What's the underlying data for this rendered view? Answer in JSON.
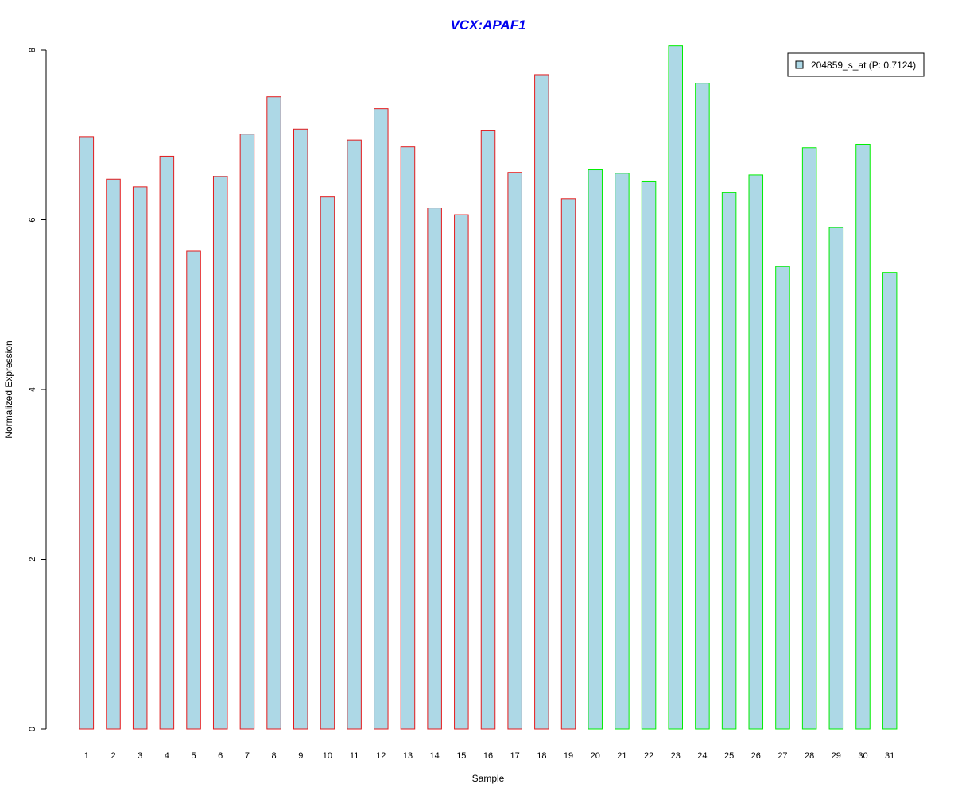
{
  "chart_data": {
    "type": "bar",
    "title": "VCX:APAF1",
    "xlabel": "Sample",
    "ylabel": "Normalized Expression",
    "ylim": [
      0,
      8
    ],
    "yticks": [
      0,
      2,
      4,
      6,
      8
    ],
    "grid": false,
    "legend_position": "top-right",
    "categories": [
      "1",
      "2",
      "3",
      "4",
      "5",
      "6",
      "7",
      "8",
      "9",
      "10",
      "11",
      "12",
      "13",
      "14",
      "15",
      "16",
      "17",
      "18",
      "19",
      "20",
      "21",
      "22",
      "23",
      "24",
      "25",
      "26",
      "27",
      "28",
      "29",
      "30",
      "31"
    ],
    "series": [
      {
        "name": "204859_s_at (P: 0.7124)",
        "values": [
          6.98,
          6.48,
          6.39,
          6.75,
          5.63,
          6.51,
          7.01,
          7.45,
          7.07,
          6.27,
          6.94,
          7.31,
          6.86,
          6.14,
          6.06,
          7.05,
          6.56,
          7.71,
          6.25,
          6.59,
          6.55,
          6.45,
          8.05,
          7.61,
          6.32,
          6.53,
          5.45,
          6.85,
          5.91,
          6.89,
          5.38
        ]
      }
    ],
    "groups": [
      {
        "range": [
          1,
          19
        ],
        "outline_color": "#e31a1c"
      },
      {
        "range": [
          20,
          31
        ],
        "outline_color": "#00ee00"
      }
    ],
    "colors": {
      "bar_fill": "#add8e6",
      "title": "#0000ee"
    }
  }
}
